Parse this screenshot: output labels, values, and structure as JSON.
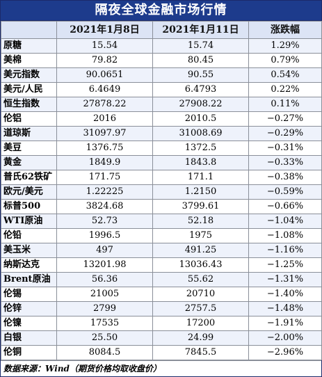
{
  "title": "隔夜全球金融市场行情",
  "columns": [
    "",
    "2021年1月8日",
    "2021年1月11日",
    "涨跌幅"
  ],
  "rows": [
    {
      "name": "原糖",
      "d1": "15.54",
      "d2": "15.74",
      "chg": "1.29%"
    },
    {
      "name": "美棉",
      "d1": "79.82",
      "d2": "80.45",
      "chg": "0.79%"
    },
    {
      "name": "美元指数",
      "d1": "90.0651",
      "d2": "90.55",
      "chg": "0.54%"
    },
    {
      "name": "美元/人民",
      "d1": "6.4649",
      "d2": "6.4793",
      "chg": "0.22%"
    },
    {
      "name": "恒生指数",
      "d1": "27878.22",
      "d2": "27908.22",
      "chg": "0.11%"
    },
    {
      "name": "伦铝",
      "d1": "2016",
      "d2": "2010.5",
      "chg": "−0.27%"
    },
    {
      "name": "道琼斯",
      "d1": "31097.97",
      "d2": "31008.69",
      "chg": "−0.29%"
    },
    {
      "name": "美豆",
      "d1": "1376.75",
      "d2": "1372.5",
      "chg": "−0.31%"
    },
    {
      "name": "黄金",
      "d1": "1849.9",
      "d2": "1843.8",
      "chg": "−0.33%"
    },
    {
      "name": "普氏62铁矿",
      "d1": "171.75",
      "d2": "171.1",
      "chg": "−0.38%"
    },
    {
      "name": "欧元/美元",
      "d1": "1.22225",
      "d2": "1.2150",
      "chg": "−0.59%"
    },
    {
      "name": "标普500",
      "d1": "3824.68",
      "d2": "3799.61",
      "chg": "−0.66%"
    },
    {
      "name": "WTI原油",
      "d1": "52.73",
      "d2": "52.18",
      "chg": "−1.04%"
    },
    {
      "name": "伦铅",
      "d1": "1996.5",
      "d2": "1975",
      "chg": "−1.08%"
    },
    {
      "name": "美玉米",
      "d1": "497",
      "d2": "491.25",
      "chg": "−1.16%"
    },
    {
      "name": "纳斯达克",
      "d1": "13201.98",
      "d2": "13036.43",
      "chg": "−1.25%"
    },
    {
      "name": "Brent原油",
      "d1": "56.36",
      "d2": "55.62",
      "chg": "−1.31%"
    },
    {
      "name": "伦锡",
      "d1": "21005",
      "d2": "20710",
      "chg": "−1.40%"
    },
    {
      "name": "伦锌",
      "d1": "2799",
      "d2": "2757.5",
      "chg": "−1.48%"
    },
    {
      "name": "伦镍",
      "d1": "17535",
      "d2": "17200",
      "chg": "−1.91%"
    },
    {
      "name": "白银",
      "d1": "25.50",
      "d2": "24.99",
      "chg": "−2.00%"
    },
    {
      "name": "伦铜",
      "d1": "8084.5",
      "d2": "7845.5",
      "chg": "−2.96%"
    }
  ],
  "footnote": "数据来源：Wind（期货价格均取收盘价）"
}
